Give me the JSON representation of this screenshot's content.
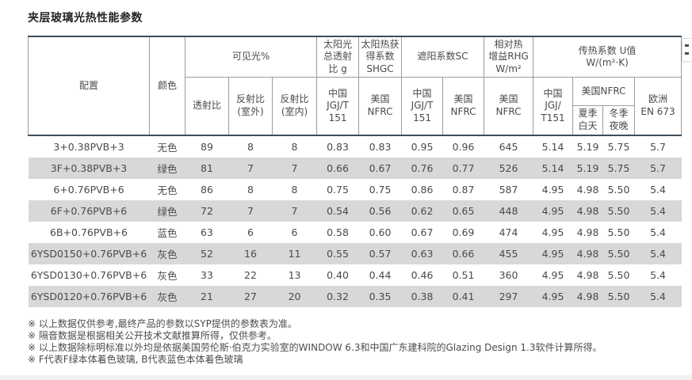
{
  "page": {
    "title": "夹层玻璃光热性能参数",
    "colors": {
      "dark_rule": "#3f4e59",
      "grid_line": "#9c9c9c",
      "stripe_bg": "#d8d8d8",
      "text": "#4a4a4a"
    }
  },
  "table": {
    "header": {
      "config": "配置",
      "color": "颜色",
      "visible_light_group": "可见光%",
      "solar_g_group": "太阳光\n总透射\n比 g",
      "shgc_group": "太阳热获\n得系数\nSHGC",
      "sc_group": "遮阳系数SC",
      "rhg_group": "相对热\n增益RHG\nW/m²",
      "u_group": "传热系数 U值\nW/(m²·K)",
      "transmittance": "透射比",
      "reflectance_outdoor": "反射比\n(室外)",
      "reflectance_indoor": "反射比\n(室内)",
      "g_cn_standard": "中国\nJGJ/T\n151",
      "shgc_us_standard": "美国\nNFRC",
      "sc_cn_standard": "中国\nJGJ/T\n151",
      "sc_us_standard": "美国\nNFRC",
      "rhg_us_standard": "美国\nNFRC",
      "u_cn_standard": "中国\nJGJ/\nT151",
      "u_us_standard": "美国NFRC",
      "u_summer": "夏季\n白天",
      "u_winter": "冬季\n夜晚",
      "u_europe": "欧洲\nEN 673"
    },
    "rows": [
      {
        "config": "3+0.38PVB+3",
        "color": "无色",
        "values": [
          "89",
          "8",
          "8",
          "0.83",
          "0.83",
          "0.95",
          "0.96",
          "645",
          "5.14",
          "5.19",
          "5.75",
          "5.7"
        ]
      },
      {
        "config": "3F+0.38PVB+3",
        "color": "绿色",
        "values": [
          "81",
          "7",
          "7",
          "0.66",
          "0.67",
          "0.76",
          "0.77",
          "526",
          "5.14",
          "5.19",
          "5.75",
          "5.7"
        ]
      },
      {
        "config": "6+0.76PVB+6",
        "color": "无色",
        "values": [
          "86",
          "8",
          "8",
          "0.75",
          "0.75",
          "0.86",
          "0.87",
          "587",
          "4.95",
          "4.98",
          "5.50",
          "5.4"
        ]
      },
      {
        "config": "6F+0.76PVB+6",
        "color": "绿色",
        "values": [
          "72",
          "7",
          "7",
          "0.54",
          "0.56",
          "0.62",
          "0.65",
          "448",
          "4.95",
          "4.98",
          "5.50",
          "5.4"
        ]
      },
      {
        "config": "6B+0.76PVB+6",
        "color": "蓝色",
        "values": [
          "63",
          "6",
          "6",
          "0.58",
          "0.60",
          "0.67",
          "0.69",
          "474",
          "4.95",
          "4.98",
          "5.50",
          "5.4"
        ]
      },
      {
        "config": "6YSD0150+0.76PVB+6",
        "color": "灰色",
        "values": [
          "52",
          "16",
          "11",
          "0.55",
          "0.57",
          "0.63",
          "0.66",
          "455",
          "4.95",
          "4.98",
          "5.50",
          "5.4"
        ]
      },
      {
        "config": "6YSD0130+0.76PVB+6",
        "color": "灰色",
        "values": [
          "33",
          "22",
          "13",
          "0.40",
          "0.44",
          "0.46",
          "0.51",
          "360",
          "4.95",
          "4.98",
          "5.50",
          "5.4"
        ]
      },
      {
        "config": "6YSD0120+0.76PVB+6",
        "color": "灰色",
        "values": [
          "21",
          "27",
          "20",
          "0.32",
          "0.35",
          "0.38",
          "0.41",
          "297",
          "4.95",
          "4.98",
          "5.50",
          "5.4"
        ]
      }
    ]
  },
  "footnotes": [
    "※ 以上数据仅供参考,最终产品的参数以SYP提供的参数表为准。",
    "※ 隔音数据是根据相关公开技术文献推算所得，仅供参考。",
    "※ 以上数据除标明标准以外均是依据美国劳伦斯·伯克力实验室的WINDOW 6.3和中国广东建科院的Glazing Design 1.3软件计算所得。",
    "※ F代表F绿本体着色玻璃, B代表蓝色本体着色玻璃"
  ]
}
